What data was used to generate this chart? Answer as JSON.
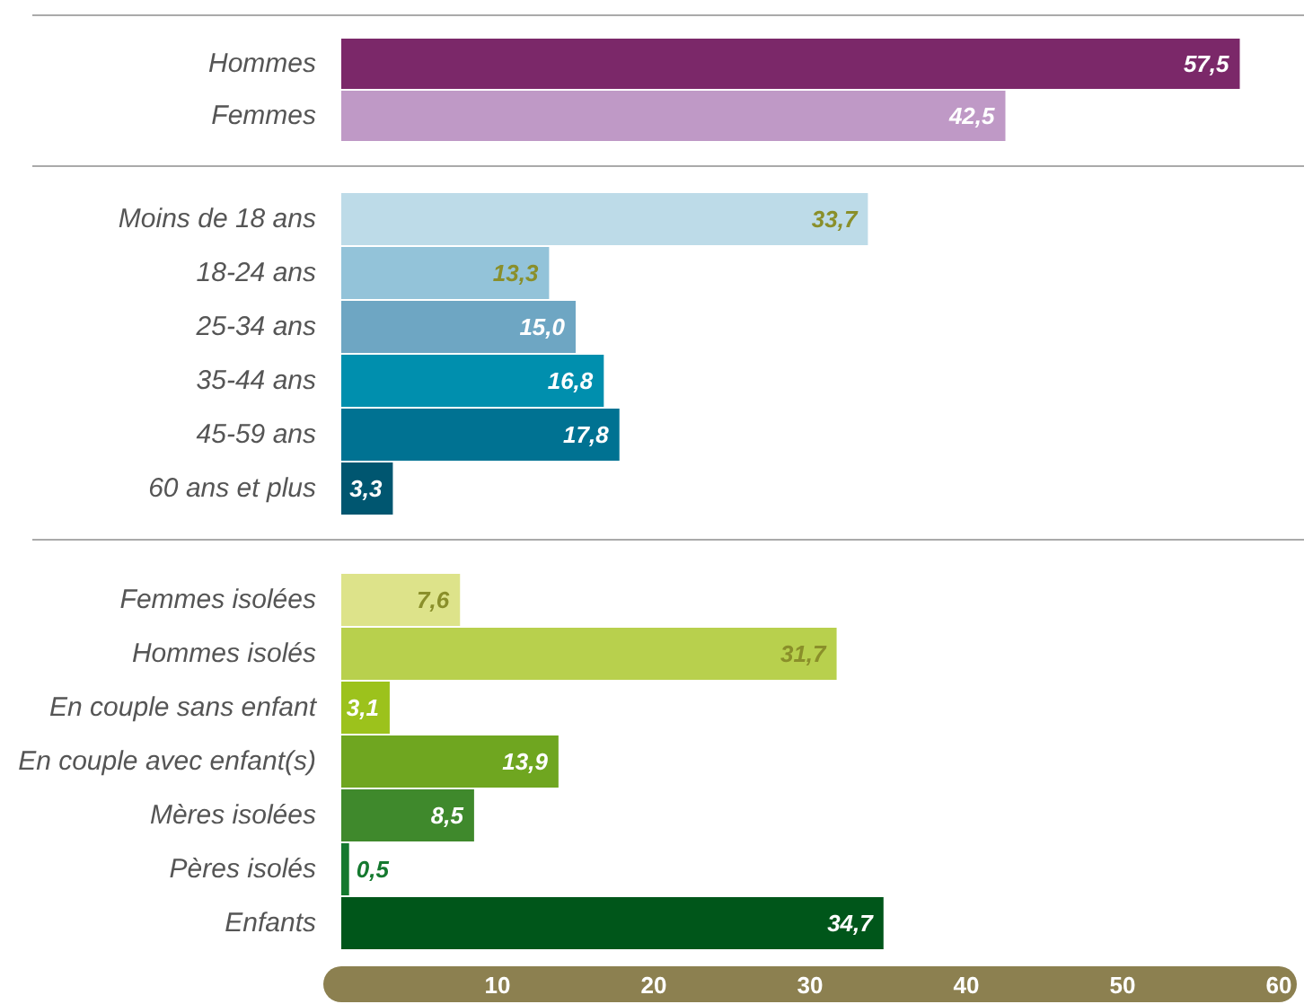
{
  "chart_data": [
    {
      "type": "bar",
      "orientation": "horizontal",
      "categories": [
        "Hommes",
        "Femmes"
      ],
      "values": [
        57.5,
        42.5
      ],
      "colors": [
        "#7b2869",
        "#bf99c6"
      ],
      "value_labels": [
        "57,5",
        "42,5"
      ],
      "xlim": [
        0,
        60
      ],
      "xticks": [
        10,
        20,
        30,
        40,
        50,
        60
      ],
      "tick_labels": "y"
    },
    {
      "type": "bar",
      "orientation": "horizontal",
      "categories": [
        "Moins de 18 ans",
        "18-24 ans",
        "25-34 ans",
        "35-44 ans",
        "45-59 ans",
        "60 ans et plus"
      ],
      "values": [
        33.7,
        13.3,
        15.0,
        16.8,
        17.8,
        3.3
      ],
      "colors": [
        "#bddbe8",
        "#93c3d9",
        "#6ea6c3",
        "#008fae",
        "#007292",
        "#005670"
      ],
      "value_labels": [
        "33,7",
        "13,3",
        "15,0",
        "16,8",
        "17,8",
        "3,3"
      ],
      "xlim": [
        0,
        60
      ],
      "xticks": [
        10,
        20,
        30,
        40,
        50,
        60
      ],
      "tick_labels": "y"
    },
    {
      "type": "bar",
      "orientation": "horizontal",
      "categories": [
        "Femmes isolées",
        "Hommes isolés",
        "En couple sans enfant",
        "En couple avec enfant(s)",
        "Mères isolées",
        "Pères isolés",
        "Enfants"
      ],
      "values": [
        7.6,
        31.7,
        3.1,
        13.9,
        8.5,
        0.5,
        34.7
      ],
      "colors": [
        "#dde38a",
        "#b8d04d",
        "#9cc21c",
        "#6fa620",
        "#3f892c",
        "#15792f",
        "#00561a"
      ],
      "value_labels": [
        "7,6",
        "31,7",
        "3,1",
        "13,9",
        "8,5",
        "0,5",
        "34,7"
      ],
      "xlim": [
        0,
        60
      ],
      "xticks": [
        10,
        20,
        30,
        40,
        50,
        60
      ]
    }
  ]
}
